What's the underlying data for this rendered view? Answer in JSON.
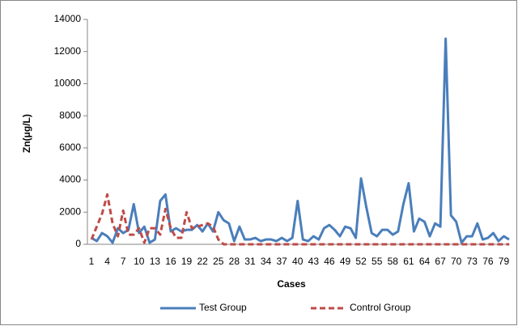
{
  "chart_data": {
    "type": "line",
    "x_label": "Cases",
    "y_label": "Zn(μg/L)",
    "categories": [
      "1",
      null,
      null,
      "4",
      null,
      null,
      "7",
      null,
      null,
      "10",
      null,
      null,
      "13",
      null,
      null,
      "16",
      null,
      null,
      "19",
      null,
      null,
      "22",
      null,
      null,
      "25",
      null,
      null,
      "28",
      null,
      null,
      "31",
      null,
      null,
      "34",
      null,
      null,
      "37",
      null,
      null,
      "40",
      null,
      null,
      "43",
      null,
      null,
      "46",
      null,
      null,
      "49",
      null,
      null,
      "52",
      null,
      null,
      "55",
      null,
      null,
      "58",
      null,
      null,
      "61",
      null,
      null,
      "64",
      null,
      null,
      "67",
      null,
      null,
      "70",
      null,
      null,
      "73",
      null,
      null,
      "76",
      null,
      null,
      "79",
      null
    ],
    "series": [
      {
        "name": "Test Group",
        "color": "#4a7ebb",
        "line_style": "solid",
        "values": [
          400,
          200,
          700,
          500,
          100,
          1000,
          700,
          900,
          2500,
          700,
          1100,
          100,
          300,
          2700,
          3100,
          800,
          1000,
          800,
          900,
          900,
          1200,
          800,
          1300,
          800,
          2000,
          1500,
          1300,
          200,
          1100,
          300,
          300,
          400,
          200,
          300,
          300,
          200,
          400,
          200,
          400,
          2700,
          300,
          200,
          500,
          300,
          1000,
          1200,
          900,
          500,
          1100,
          1000,
          400,
          4100,
          2300,
          700,
          500,
          900,
          900,
          600,
          800,
          2500,
          3800,
          800,
          1600,
          1400,
          500,
          1300,
          1100,
          12800,
          1800,
          1400,
          100,
          500,
          500,
          1300,
          300,
          400,
          700,
          200,
          500,
          300
        ]
      },
      {
        "name": "Control Group",
        "color": "#be4b48",
        "line_style": "dashed",
        "values": [
          300,
          1100,
          1900,
          3100,
          1300,
          500,
          2100,
          600,
          600,
          1000,
          100,
          1000,
          1000,
          600,
          2200,
          1000,
          400,
          400,
          2000,
          1000,
          1100,
          1200,
          1300,
          1100,
          300,
          0,
          0,
          0,
          0,
          0,
          0,
          0,
          0,
          0,
          0,
          0,
          0,
          0,
          0,
          0,
          0,
          0,
          0,
          0,
          0,
          0,
          0,
          0,
          0,
          0,
          0,
          0,
          0,
          0,
          0,
          0,
          0,
          0,
          0,
          0,
          0,
          0,
          0,
          0,
          0,
          0,
          0,
          0,
          0,
          0,
          0,
          0,
          0,
          0,
          0,
          0,
          0,
          0,
          0,
          0
        ]
      }
    ],
    "ylim": [
      0,
      14000
    ],
    "yticks": [
      0,
      2000,
      4000,
      6000,
      8000,
      10000,
      12000,
      14000
    ],
    "grid": false,
    "legend": "bottom"
  }
}
